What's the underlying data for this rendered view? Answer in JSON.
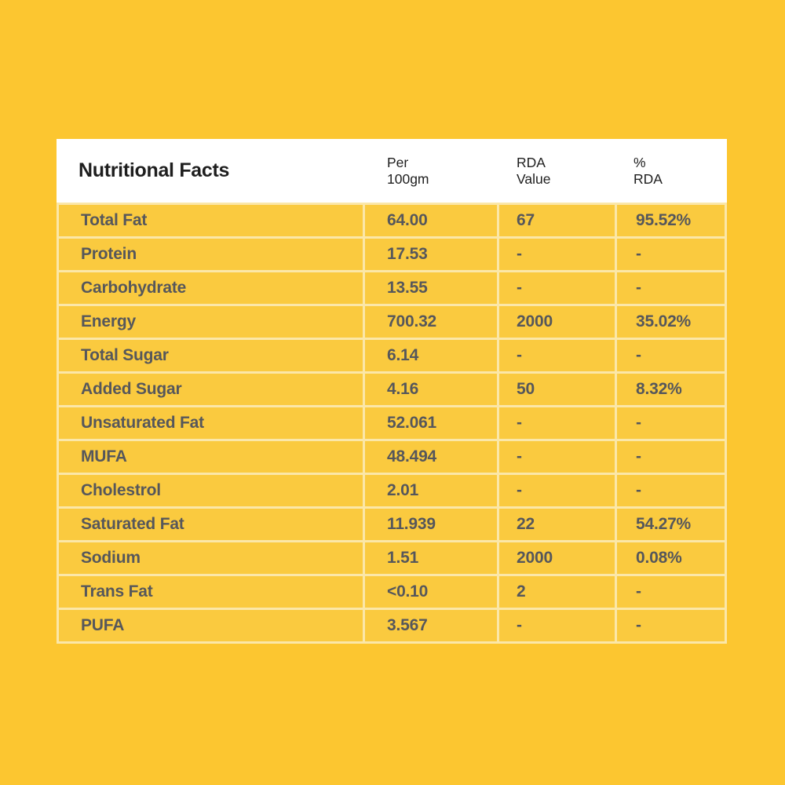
{
  "colors": {
    "background": "#FCC630",
    "row_fill": "#FACA3F",
    "divider": "#FBE7A8",
    "header_background": "#FFFFFF",
    "header_text": "#1E1E1E",
    "row_text": "#56575B"
  },
  "table": {
    "title": "Nutritional Facts",
    "columns": [
      {
        "line1": "Per",
        "line2": "100gm"
      },
      {
        "line1": "RDA",
        "line2": "Value"
      },
      {
        "line1": "%",
        "line2": "RDA"
      }
    ],
    "rows": [
      {
        "label": "Total Fat",
        "per_100gm": "64.00",
        "rda_value": "67",
        "rda_percent": "95.52%"
      },
      {
        "label": "Protein",
        "per_100gm": "17.53",
        "rda_value": "-",
        "rda_percent": "-"
      },
      {
        "label": "Carbohydrate",
        "per_100gm": "13.55",
        "rda_value": "-",
        "rda_percent": "-"
      },
      {
        "label": "Energy",
        "per_100gm": "700.32",
        "rda_value": "2000",
        "rda_percent": "35.02%"
      },
      {
        "label": "Total Sugar",
        "per_100gm": "6.14",
        "rda_value": "-",
        "rda_percent": "-"
      },
      {
        "label": "Added Sugar",
        "per_100gm": "4.16",
        "rda_value": "50",
        "rda_percent": "8.32%"
      },
      {
        "label": "Unsaturated Fat",
        "per_100gm": "52.061",
        "rda_value": "-",
        "rda_percent": "-"
      },
      {
        "label": "MUFA",
        "per_100gm": "48.494",
        "rda_value": "-",
        "rda_percent": "-"
      },
      {
        "label": "Cholestrol",
        "per_100gm": "2.01",
        "rda_value": "-",
        "rda_percent": "-"
      },
      {
        "label": "Saturated Fat",
        "per_100gm": "11.939",
        "rda_value": "22",
        "rda_percent": "54.27%"
      },
      {
        "label": "Sodium",
        "per_100gm": "1.51",
        "rda_value": "2000",
        "rda_percent": "0.08%"
      },
      {
        "label": "Trans Fat",
        "per_100gm": "<0.10",
        "rda_value": "2",
        "rda_percent": "-"
      },
      {
        "label": "PUFA",
        "per_100gm": "3.567",
        "rda_value": "-",
        "rda_percent": "-"
      }
    ]
  },
  "chart_data": {
    "type": "table",
    "title": "Nutritional Facts",
    "columns": [
      "Nutritional Facts",
      "Per 100gm",
      "RDA Value",
      "% RDA"
    ],
    "rows": [
      [
        "Total Fat",
        "64.00",
        "67",
        "95.52%"
      ],
      [
        "Protein",
        "17.53",
        "-",
        "-"
      ],
      [
        "Carbohydrate",
        "13.55",
        "-",
        "-"
      ],
      [
        "Energy",
        "700.32",
        "2000",
        "35.02%"
      ],
      [
        "Total Sugar",
        "6.14",
        "-",
        "-"
      ],
      [
        "Added Sugar",
        "4.16",
        "50",
        "8.32%"
      ],
      [
        "Unsaturated Fat",
        "52.061",
        "-",
        "-"
      ],
      [
        "MUFA",
        "48.494",
        "-",
        "-"
      ],
      [
        "Cholestrol",
        "2.01",
        "-",
        "-"
      ],
      [
        "Saturated Fat",
        "11.939",
        "22",
        "54.27%"
      ],
      [
        "Sodium",
        "1.51",
        "2000",
        "0.08%"
      ],
      [
        "Trans Fat",
        "<0.10",
        "2",
        "-"
      ],
      [
        "PUFA",
        "3.567",
        "-",
        "-"
      ]
    ]
  }
}
